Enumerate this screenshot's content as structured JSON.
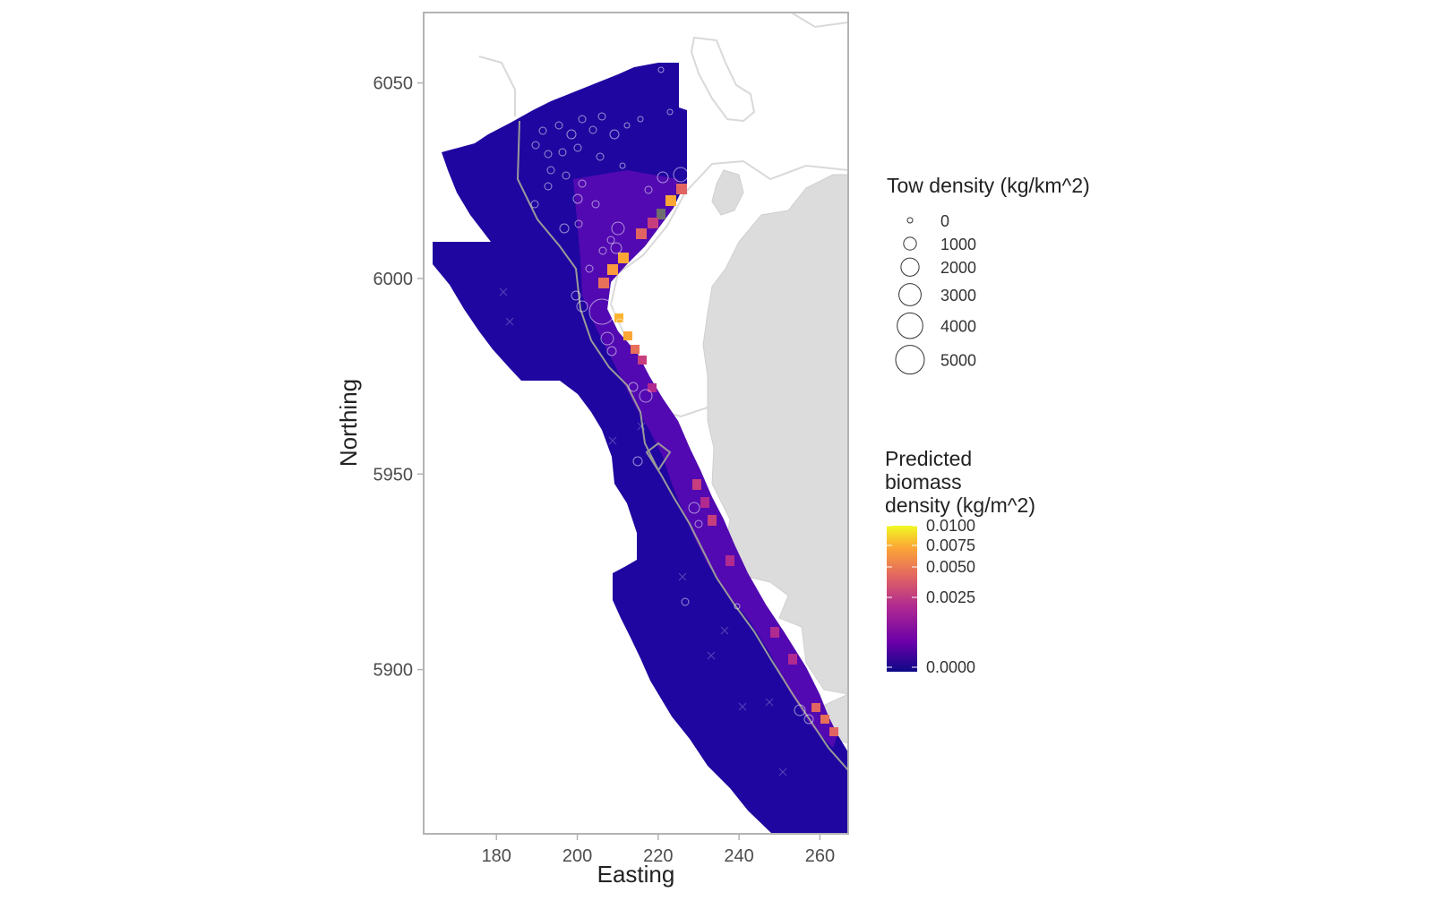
{
  "chart_data": {
    "type": "heatmap",
    "title": "",
    "xlabel": "Easting",
    "ylabel": "Northing",
    "x_ticks": [
      180,
      200,
      220,
      240,
      260
    ],
    "y_ticks": [
      5900,
      5950,
      6000,
      6050
    ],
    "xlim": [
      162,
      267
    ],
    "ylim": [
      5858,
      6068
    ],
    "grid": false,
    "size_legend": {
      "title": "Tow density (kg/km^2)",
      "entries": [
        "0",
        "1000",
        "2000",
        "3000",
        "4000",
        "5000"
      ],
      "values": [
        0,
        1000,
        2000,
        3000,
        4000,
        5000
      ]
    },
    "color_legend": {
      "title_lines": [
        "Predicted",
        "biomass",
        "density (kg/m^2)"
      ],
      "labels": [
        "0.0100",
        "0.0075",
        "0.0050",
        "0.0025",
        "0.0000"
      ],
      "values": [
        0.01,
        0.0075,
        0.005,
        0.0025,
        0.0
      ],
      "palette": [
        "#0d0887",
        "#6a00a8",
        "#b12a90",
        "#e16462",
        "#fca636",
        "#f0f921"
      ]
    },
    "colors": {
      "land": "#dcdcdc",
      "contour": "#9a9a9a",
      "panel_border": "#b3b3b3",
      "circle": "#ffffff"
    }
  }
}
